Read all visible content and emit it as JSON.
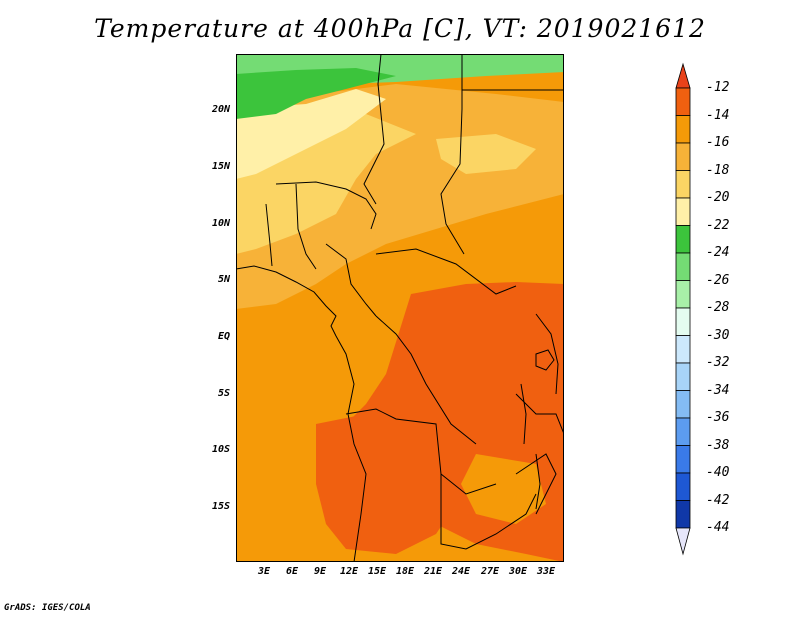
{
  "title": "Temperature at 400hPa [C], VT: 2019021612",
  "credit": "GrADS: IGES/COLA",
  "map": {
    "lat_labels": [
      "20N",
      "15N",
      "10N",
      "5N",
      "EQ",
      "5S",
      "10S",
      "15S"
    ],
    "lon_labels": [
      "3E",
      "6E",
      "9E",
      "12E",
      "15E",
      "18E",
      "21E",
      "24E",
      "27E",
      "30E",
      "33E"
    ],
    "lat_range": [
      -20,
      25
    ],
    "lon_range": [
      0,
      35
    ]
  },
  "colorbar": {
    "labels": [
      "-12",
      "-14",
      "-16",
      "-18",
      "-20",
      "-22",
      "-24",
      "-26",
      "-28",
      "-30",
      "-32",
      "-34",
      "-36",
      "-38",
      "-40",
      "-42",
      "-44"
    ],
    "top_arrow_color": "#e8421a",
    "bottom_arrow_color": "#e6e6fa",
    "colors": [
      "#f06010",
      "#f59a08",
      "#f7b238",
      "#fbd564",
      "#fff0a8",
      "#3cc43c",
      "#74dc74",
      "#a8f0a8",
      "#e4fcf0",
      "#cce8fc",
      "#a8d4f8",
      "#84bcf4",
      "#5c9cf0",
      "#3a7ae8",
      "#1e58d4",
      "#1038a8",
      "#0c1878"
    ]
  },
  "palette": {
    "green_dark": "#3cc43c",
    "green_mid": "#74dc74",
    "yellow_light": "#fff0a8",
    "yellow": "#fbd564",
    "orange_light": "#f7b238",
    "orange": "#f59a08",
    "orange_dark": "#f06010",
    "border": "#000000"
  }
}
